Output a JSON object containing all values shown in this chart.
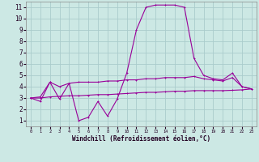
{
  "xlabel": "Windchill (Refroidissement éolien,°C)",
  "background_color": "#cce8e4",
  "grid_color": "#aacccc",
  "line_color": "#990099",
  "x": [
    0,
    1,
    2,
    3,
    4,
    5,
    6,
    7,
    8,
    9,
    10,
    11,
    12,
    13,
    14,
    15,
    16,
    17,
    18,
    19,
    20,
    21,
    22,
    23
  ],
  "series1": [
    3.0,
    2.7,
    4.4,
    2.9,
    4.3,
    1.0,
    1.3,
    2.7,
    1.4,
    2.9,
    5.2,
    9.0,
    11.0,
    11.2,
    11.2,
    11.2,
    11.0,
    6.5,
    5.0,
    4.7,
    4.6,
    5.2,
    4.0,
    3.8
  ],
  "series2": [
    3.0,
    3.1,
    4.4,
    4.0,
    4.3,
    4.4,
    4.4,
    4.4,
    4.5,
    4.5,
    4.6,
    4.6,
    4.7,
    4.7,
    4.8,
    4.8,
    4.8,
    4.9,
    4.7,
    4.6,
    4.5,
    4.8,
    4.0,
    3.8
  ],
  "series3": [
    3.0,
    3.0,
    3.1,
    3.15,
    3.2,
    3.2,
    3.25,
    3.3,
    3.3,
    3.35,
    3.4,
    3.45,
    3.5,
    3.5,
    3.55,
    3.6,
    3.6,
    3.65,
    3.65,
    3.65,
    3.65,
    3.68,
    3.72,
    3.8
  ],
  "xlim": [
    -0.5,
    23.5
  ],
  "ylim": [
    0.5,
    11.5
  ],
  "xticks": [
    0,
    1,
    2,
    3,
    4,
    5,
    6,
    7,
    8,
    9,
    10,
    11,
    12,
    13,
    14,
    15,
    16,
    17,
    18,
    19,
    20,
    21,
    22,
    23
  ],
  "yticks": [
    1,
    2,
    3,
    4,
    5,
    6,
    7,
    8,
    9,
    10,
    11
  ],
  "figsize": [
    3.2,
    2.0
  ],
  "dpi": 100
}
